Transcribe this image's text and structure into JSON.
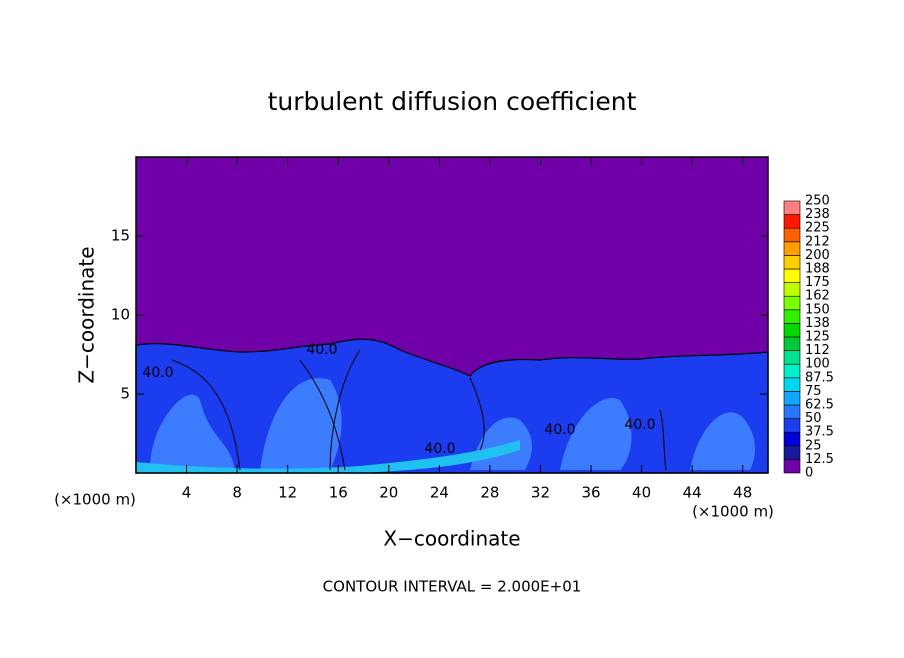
{
  "chart_data": {
    "type": "contour",
    "title": "turbulent diffusion coefficient",
    "x_label": "X−coordinate",
    "y_label": "Z−coordinate",
    "x_unit_label": "(×1000 m)",
    "footer": "CONTOUR INTERVAL = 2.000E+01",
    "xlim": [
      0,
      50
    ],
    "xticks": [
      4,
      8,
      12,
      16,
      20,
      24,
      28,
      32,
      36,
      40,
      44,
      48
    ],
    "ylim": [
      0,
      20
    ],
    "yticks": [
      5,
      10,
      15
    ],
    "colorbar": {
      "levels": [
        0,
        12.5,
        25,
        37.5,
        50,
        62.5,
        75,
        87.5,
        100,
        112,
        125,
        138,
        150,
        162,
        175,
        188,
        200,
        212,
        225,
        238,
        250
      ],
      "colors": [
        "#7000a8",
        "#1818a0",
        "#0000d8",
        "#1c3cf0",
        "#2878ff",
        "#10a8ff",
        "#00d8f0",
        "#00f0c8",
        "#00e090",
        "#00c838",
        "#00d800",
        "#30f000",
        "#78ff00",
        "#c0ff00",
        "#ffff00",
        "#ffd000",
        "#ffa000",
        "#ff6000",
        "#ff1800",
        "#ff8080"
      ]
    },
    "annotations": [
      "40.0",
      "40.0",
      "40.0",
      "40.0",
      "40.0"
    ]
  }
}
